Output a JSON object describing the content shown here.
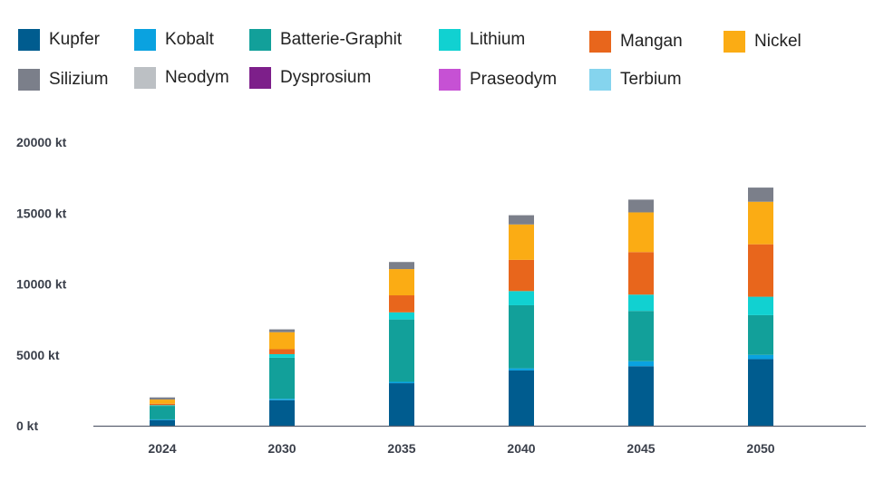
{
  "chart_data": {
    "type": "bar",
    "stacked": true,
    "title": "",
    "xlabel": "",
    "ylabel": "",
    "ylim": [
      0,
      20000
    ],
    "y_ticks": [
      0,
      5000,
      10000,
      15000,
      20000
    ],
    "y_tick_labels": [
      "0 kt",
      "5000 kt",
      "10000 kt",
      "15000 kt",
      "20000 kt"
    ],
    "categories": [
      "2024",
      "2030",
      "2035",
      "2040",
      "2045",
      "2050"
    ],
    "legend_position": "top",
    "series": [
      {
        "name": "Kupfer",
        "color": "#005c8f",
        "values": [
          400,
          1800,
          3000,
          3900,
          4200,
          4700
        ]
      },
      {
        "name": "Kobalt",
        "color": "#0aa2e0",
        "values": [
          50,
          100,
          100,
          150,
          350,
          300
        ]
      },
      {
        "name": "Batterie-Graphit",
        "color": "#12a09a",
        "values": [
          950,
          2900,
          4400,
          4450,
          3550,
          2800
        ]
      },
      {
        "name": "Lithium",
        "color": "#11d1d1",
        "values": [
          50,
          250,
          500,
          1000,
          1150,
          1300
        ]
      },
      {
        "name": "Mangan",
        "color": "#e8661c",
        "values": [
          100,
          350,
          1200,
          2200,
          3000,
          3700
        ]
      },
      {
        "name": "Nickel",
        "color": "#fbac14",
        "values": [
          300,
          1200,
          1850,
          2500,
          2800,
          3000
        ]
      },
      {
        "name": "Silizium",
        "color": "#7b7f8a",
        "values": [
          150,
          200,
          500,
          650,
          900,
          1000
        ]
      },
      {
        "name": "Neodym",
        "color": "#bcc0c4",
        "values": [
          0,
          0,
          0,
          0,
          0,
          0
        ]
      },
      {
        "name": "Dysprosium",
        "color": "#7d1f8a",
        "values": [
          0,
          0,
          0,
          0,
          0,
          0
        ]
      },
      {
        "name": "Praseodym",
        "color": "#c651d4",
        "values": [
          0,
          0,
          0,
          0,
          0,
          0
        ]
      },
      {
        "name": "Terbium",
        "color": "#85d4ee",
        "values": [
          0,
          0,
          0,
          0,
          0,
          0
        ]
      }
    ]
  },
  "axis_color": "#5a6070",
  "text_color": "#3a3f4a"
}
